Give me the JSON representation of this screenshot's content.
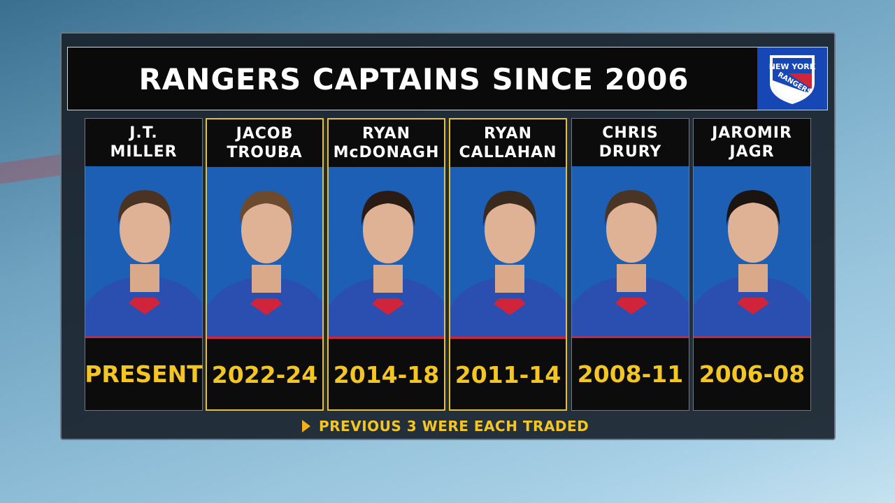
{
  "title": "RANGERS CAPTAINS SINCE 2006",
  "logo": {
    "line1": "NEW YORK",
    "line2": "RANGERS"
  },
  "colors": {
    "highlight": "#e8c12a",
    "years": "#f3c623",
    "photo_bg": "#1c5fb5",
    "accent_red": "#d0243a"
  },
  "captains": [
    {
      "first": "J.T.",
      "last": "MILLER",
      "years": "PRESENT",
      "highlighted": false
    },
    {
      "first": "JACOB",
      "last": "TROUBA",
      "years": "2022-24",
      "highlighted": true
    },
    {
      "first": "RYAN",
      "last": "McDONAGH",
      "years": "2014-18",
      "highlighted": true
    },
    {
      "first": "RYAN",
      "last": "CALLAHAN",
      "years": "2011-14",
      "highlighted": true
    },
    {
      "first": "CHRIS",
      "last": "DRURY",
      "years": "2008-11",
      "highlighted": false
    },
    {
      "first": "JAROMIR",
      "last": "JAGR",
      "years": "2006-08",
      "highlighted": false
    }
  ],
  "note": "PREVIOUS 3 WERE EACH TRADED"
}
